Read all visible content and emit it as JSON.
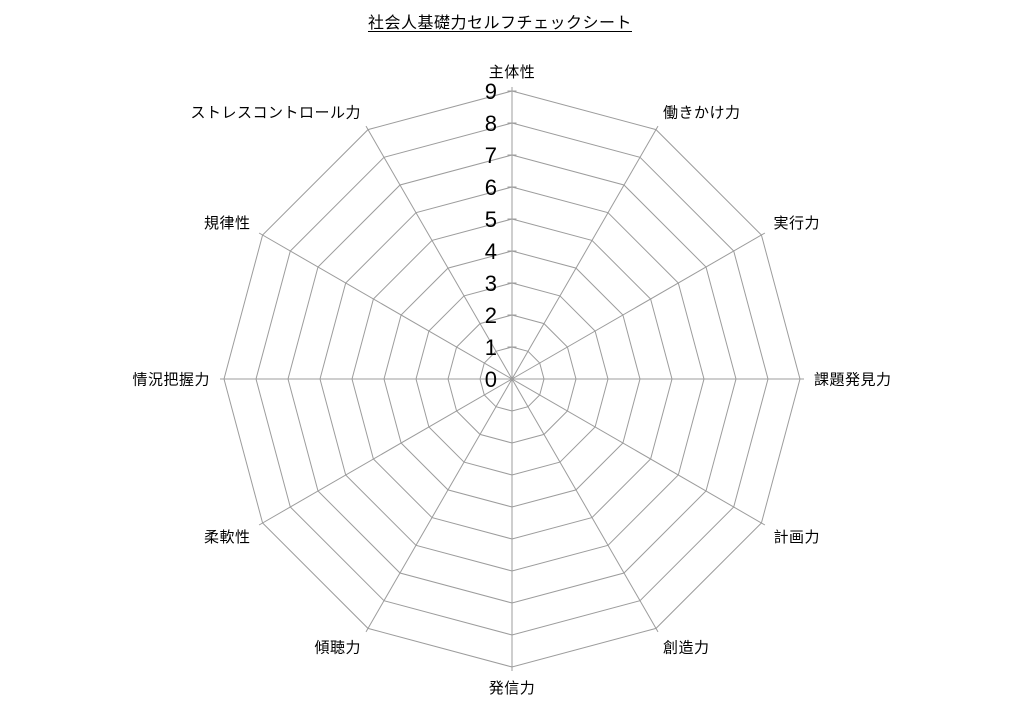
{
  "chart_data": {
    "type": "radar",
    "title": "社会人基礎力セルフチェックシート",
    "categories": [
      "主体性",
      "働きかけ力",
      "実行力",
      "課題発見力",
      "計画力",
      "創造力",
      "発信力",
      "傾聴力",
      "柔軟性",
      "情況把握力",
      "規律性",
      "ストレスコントロール力"
    ],
    "series": [],
    "axis": {
      "min": 0,
      "max": 9,
      "step": 1,
      "tick_labels": [
        "0",
        "1",
        "2",
        "3",
        "4",
        "5",
        "6",
        "7",
        "8",
        "9"
      ]
    },
    "grid": true,
    "legend": false,
    "style": {
      "grid_color": "#9c9c9c",
      "text_color": "#000000",
      "background": "#ffffff"
    }
  }
}
